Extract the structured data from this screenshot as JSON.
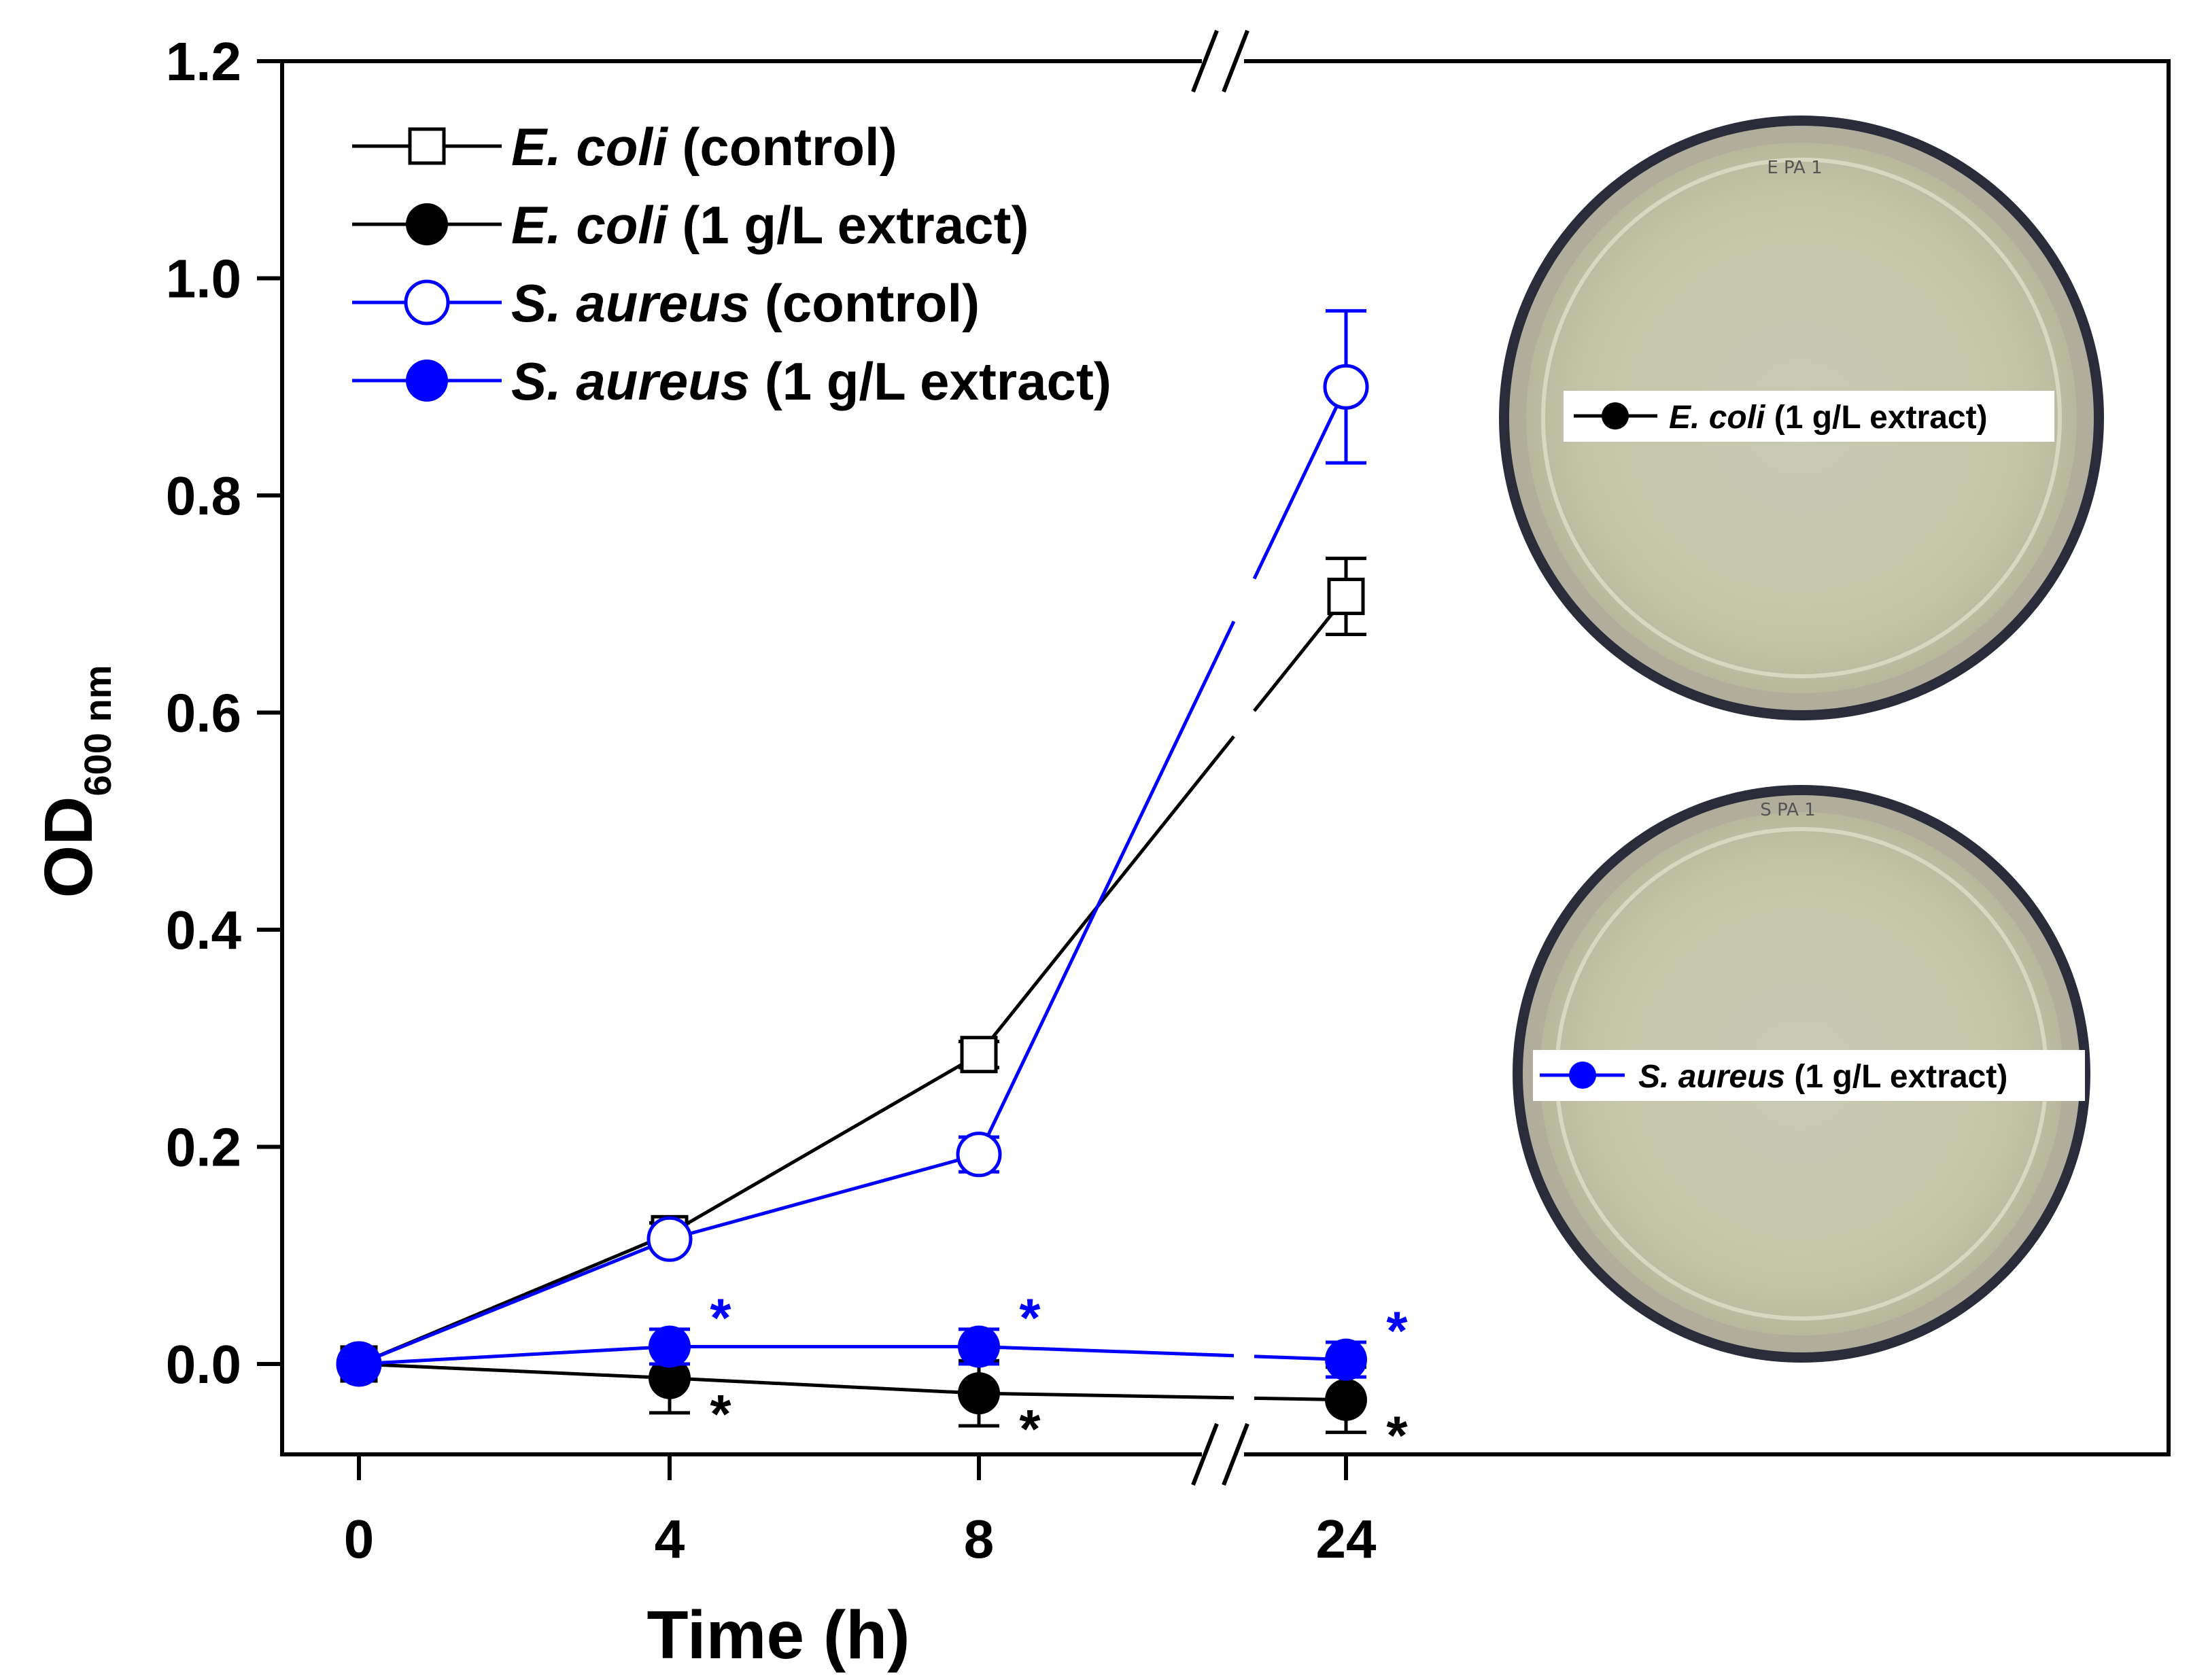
{
  "chart_data": {
    "type": "line",
    "xlabel": "Time (h)",
    "ylabel": "OD",
    "ylabel_subscript": "600 nm",
    "x": [
      0,
      4,
      8,
      24
    ],
    "x_tick_labels": [
      "0",
      "4",
      "8",
      "24"
    ],
    "x_axis_break": "between 8 and 24",
    "ylim": [
      -0.08,
      1.2
    ],
    "y_ticks": [
      0.0,
      0.2,
      0.4,
      0.6,
      0.8,
      1.0,
      1.2
    ],
    "y_tick_labels": [
      "0.0",
      "0.2",
      "0.4",
      "0.6",
      "0.8",
      "1.0",
      "1.2"
    ],
    "series": [
      {
        "name_italic": "E. coli",
        "name_rest": " (control)",
        "color": "#000000",
        "marker": "open-square",
        "values": [
          0.0,
          0.12,
          0.285,
          0.707
        ],
        "errors": [
          0.004,
          0.01,
          0.012,
          0.035
        ],
        "stars": [
          false,
          false,
          false,
          false
        ]
      },
      {
        "name_italic": "E. coli",
        "name_rest": " (1 g/L extract)",
        "color": "#000000",
        "marker": "filled-circle",
        "values": [
          0.0,
          -0.013,
          -0.027,
          -0.033
        ],
        "errors": [
          0.004,
          0.032,
          0.03,
          0.03
        ],
        "stars": [
          false,
          true,
          true,
          true
        ]
      },
      {
        "name_italic": "S. aureus",
        "name_rest": " (control)",
        "color": "#0000ff",
        "marker": "open-circle",
        "values": [
          0.0,
          0.115,
          0.193,
          0.9
        ],
        "errors": [
          0.004,
          0.008,
          0.016,
          0.07
        ],
        "stars": [
          false,
          false,
          false,
          false
        ]
      },
      {
        "name_italic": "S. aureus",
        "name_rest": " (1 g/L extract)",
        "color": "#0000ff",
        "marker": "filled-circle",
        "values": [
          0.0,
          0.016,
          0.016,
          0.004
        ],
        "errors": [
          0.004,
          0.016,
          0.016,
          0.016
        ],
        "stars": [
          false,
          true,
          true,
          true
        ]
      }
    ],
    "significance_marker": "*",
    "insets": [
      {
        "plate_label": "E PA 1",
        "legend_italic": "E. coli",
        "legend_rest": " (1 g/L extract)",
        "color": "#000000"
      },
      {
        "plate_label": "S PA 1",
        "legend_italic": "S. aureus",
        "legend_rest": " (1 g/L extract)",
        "color": "#0000ff"
      }
    ]
  }
}
